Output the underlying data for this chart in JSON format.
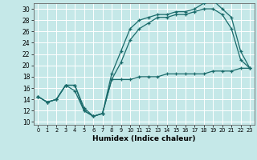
{
  "xlabel": "Humidex (Indice chaleur)",
  "bg_color": "#c5e8e8",
  "line_color": "#1a6b6b",
  "grid_color": "#ffffff",
  "xlim": [
    -0.5,
    23.5
  ],
  "ylim": [
    9.5,
    31.0
  ],
  "xticks": [
    0,
    1,
    2,
    3,
    4,
    5,
    6,
    7,
    8,
    9,
    10,
    11,
    12,
    13,
    14,
    15,
    16,
    17,
    18,
    19,
    20,
    21,
    22,
    23
  ],
  "yticks": [
    10,
    12,
    14,
    16,
    18,
    20,
    22,
    24,
    26,
    28,
    30
  ],
  "line1_x": [
    0,
    1,
    2,
    3,
    4,
    5,
    6,
    7,
    8,
    9,
    10,
    11,
    12,
    13,
    14,
    15,
    16,
    17,
    18,
    19,
    20,
    21,
    22,
    23
  ],
  "line1_y": [
    14.5,
    13.5,
    14.0,
    16.5,
    16.5,
    12.0,
    11.0,
    11.5,
    18.5,
    22.5,
    26.5,
    28.0,
    28.5,
    29.0,
    29.0,
    29.5,
    29.5,
    30.0,
    31.0,
    31.5,
    30.0,
    28.5,
    22.5,
    19.5
  ],
  "line2_x": [
    0,
    1,
    2,
    3,
    4,
    5,
    6,
    7,
    8,
    9,
    10,
    11,
    12,
    13,
    14,
    15,
    16,
    17,
    18,
    19,
    20,
    21,
    22,
    23
  ],
  "line2_y": [
    14.5,
    13.5,
    14.0,
    16.5,
    15.5,
    12.0,
    11.0,
    11.5,
    17.5,
    20.5,
    24.5,
    26.5,
    27.5,
    28.5,
    28.5,
    29.0,
    29.0,
    29.5,
    30.0,
    30.0,
    29.0,
    26.5,
    21.0,
    19.5
  ],
  "line3_x": [
    0,
    1,
    2,
    3,
    4,
    5,
    6,
    7,
    8,
    9,
    10,
    11,
    12,
    13,
    14,
    15,
    16,
    17,
    18,
    19,
    20,
    21,
    22,
    23
  ],
  "line3_y": [
    14.5,
    13.5,
    14.0,
    16.5,
    16.5,
    12.5,
    11.0,
    11.5,
    17.5,
    17.5,
    17.5,
    18.0,
    18.0,
    18.0,
    18.5,
    18.5,
    18.5,
    18.5,
    18.5,
    19.0,
    19.0,
    19.0,
    19.5,
    19.5
  ]
}
